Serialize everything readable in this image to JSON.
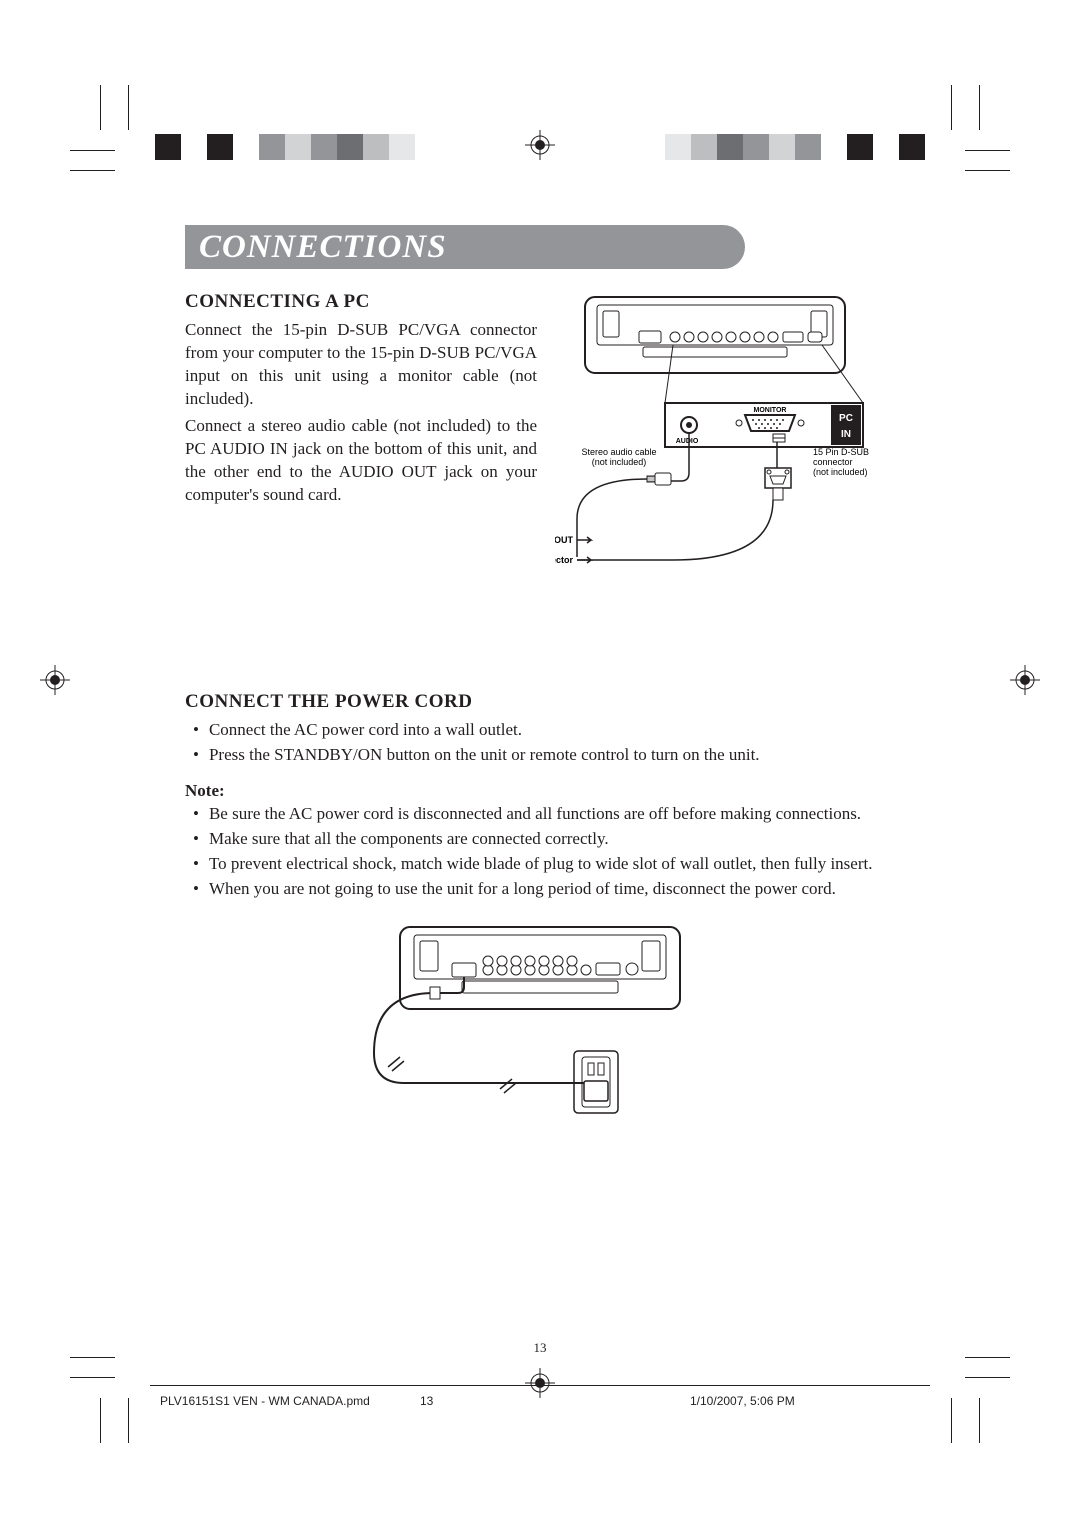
{
  "colors": {
    "gray_header": "#939598",
    "text": "#231f20",
    "white": "#ffffff"
  },
  "color_bars": {
    "left": [
      "#231f20",
      "#ffffff",
      "#231f20",
      "#ffffff",
      "#939598",
      "#d1d3d4",
      "#939598",
      "#6d6e71",
      "#bcbec0",
      "#e6e7e8",
      "#ffffff"
    ],
    "right": [
      "#ffffff",
      "#e6e7e8",
      "#bcbec0",
      "#6d6e71",
      "#939598",
      "#d1d3d4",
      "#939598",
      "#ffffff",
      "#231f20",
      "#ffffff",
      "#231f20"
    ],
    "swatch_width": 26
  },
  "title": "CONNECTIONS",
  "section1": {
    "heading": "CONNECTING A PC",
    "para1": "Connect the 15-pin D-SUB PC/VGA connector from your computer to the 15-pin D-SUB PC/VGA input on this unit using a monitor cable (not included).",
    "para2": "Connect a stereo audio cable (not included) to the PC AUDIO IN jack on the bottom of this unit, and the other end to the AUDIO OUT jack on your computer's sound card.",
    "fig": {
      "label_audio_cable": "Stereo audio cable",
      "label_not_incl": "(not included)",
      "label_dsub": "15 Pin D-SUB",
      "label_connector": "connector",
      "label_audio": "AUDIO",
      "label_monitor": "MONITOR",
      "label_pc": "PC",
      "label_in": "IN",
      "label_to_pc_audio": "To PC AUDIO OUT",
      "label_to_pc_conn": "To PC connector"
    }
  },
  "section2": {
    "heading": "CONNECT THE POWER CORD",
    "steps": [
      "Connect the AC power cord into a wall outlet.",
      "Press the STANDBY/ON button on the unit or remote control to turn on the unit."
    ],
    "note_label": "Note:",
    "notes": [
      "Be sure the AC power cord is disconnected and all functions are off before making connections.",
      "Make sure that all the components are connected correctly.",
      "To prevent electrical shock, match wide blade of plug to wide slot of wall outlet, then fully insert.",
      "When you are not going to use the unit for a long period of time, disconnect the power cord."
    ]
  },
  "page_number": "13",
  "footer": {
    "filename": "PLV16151S1 VEN - WM CANADA.pmd",
    "page": "13",
    "datetime": "1/10/2007, 5:06 PM"
  }
}
